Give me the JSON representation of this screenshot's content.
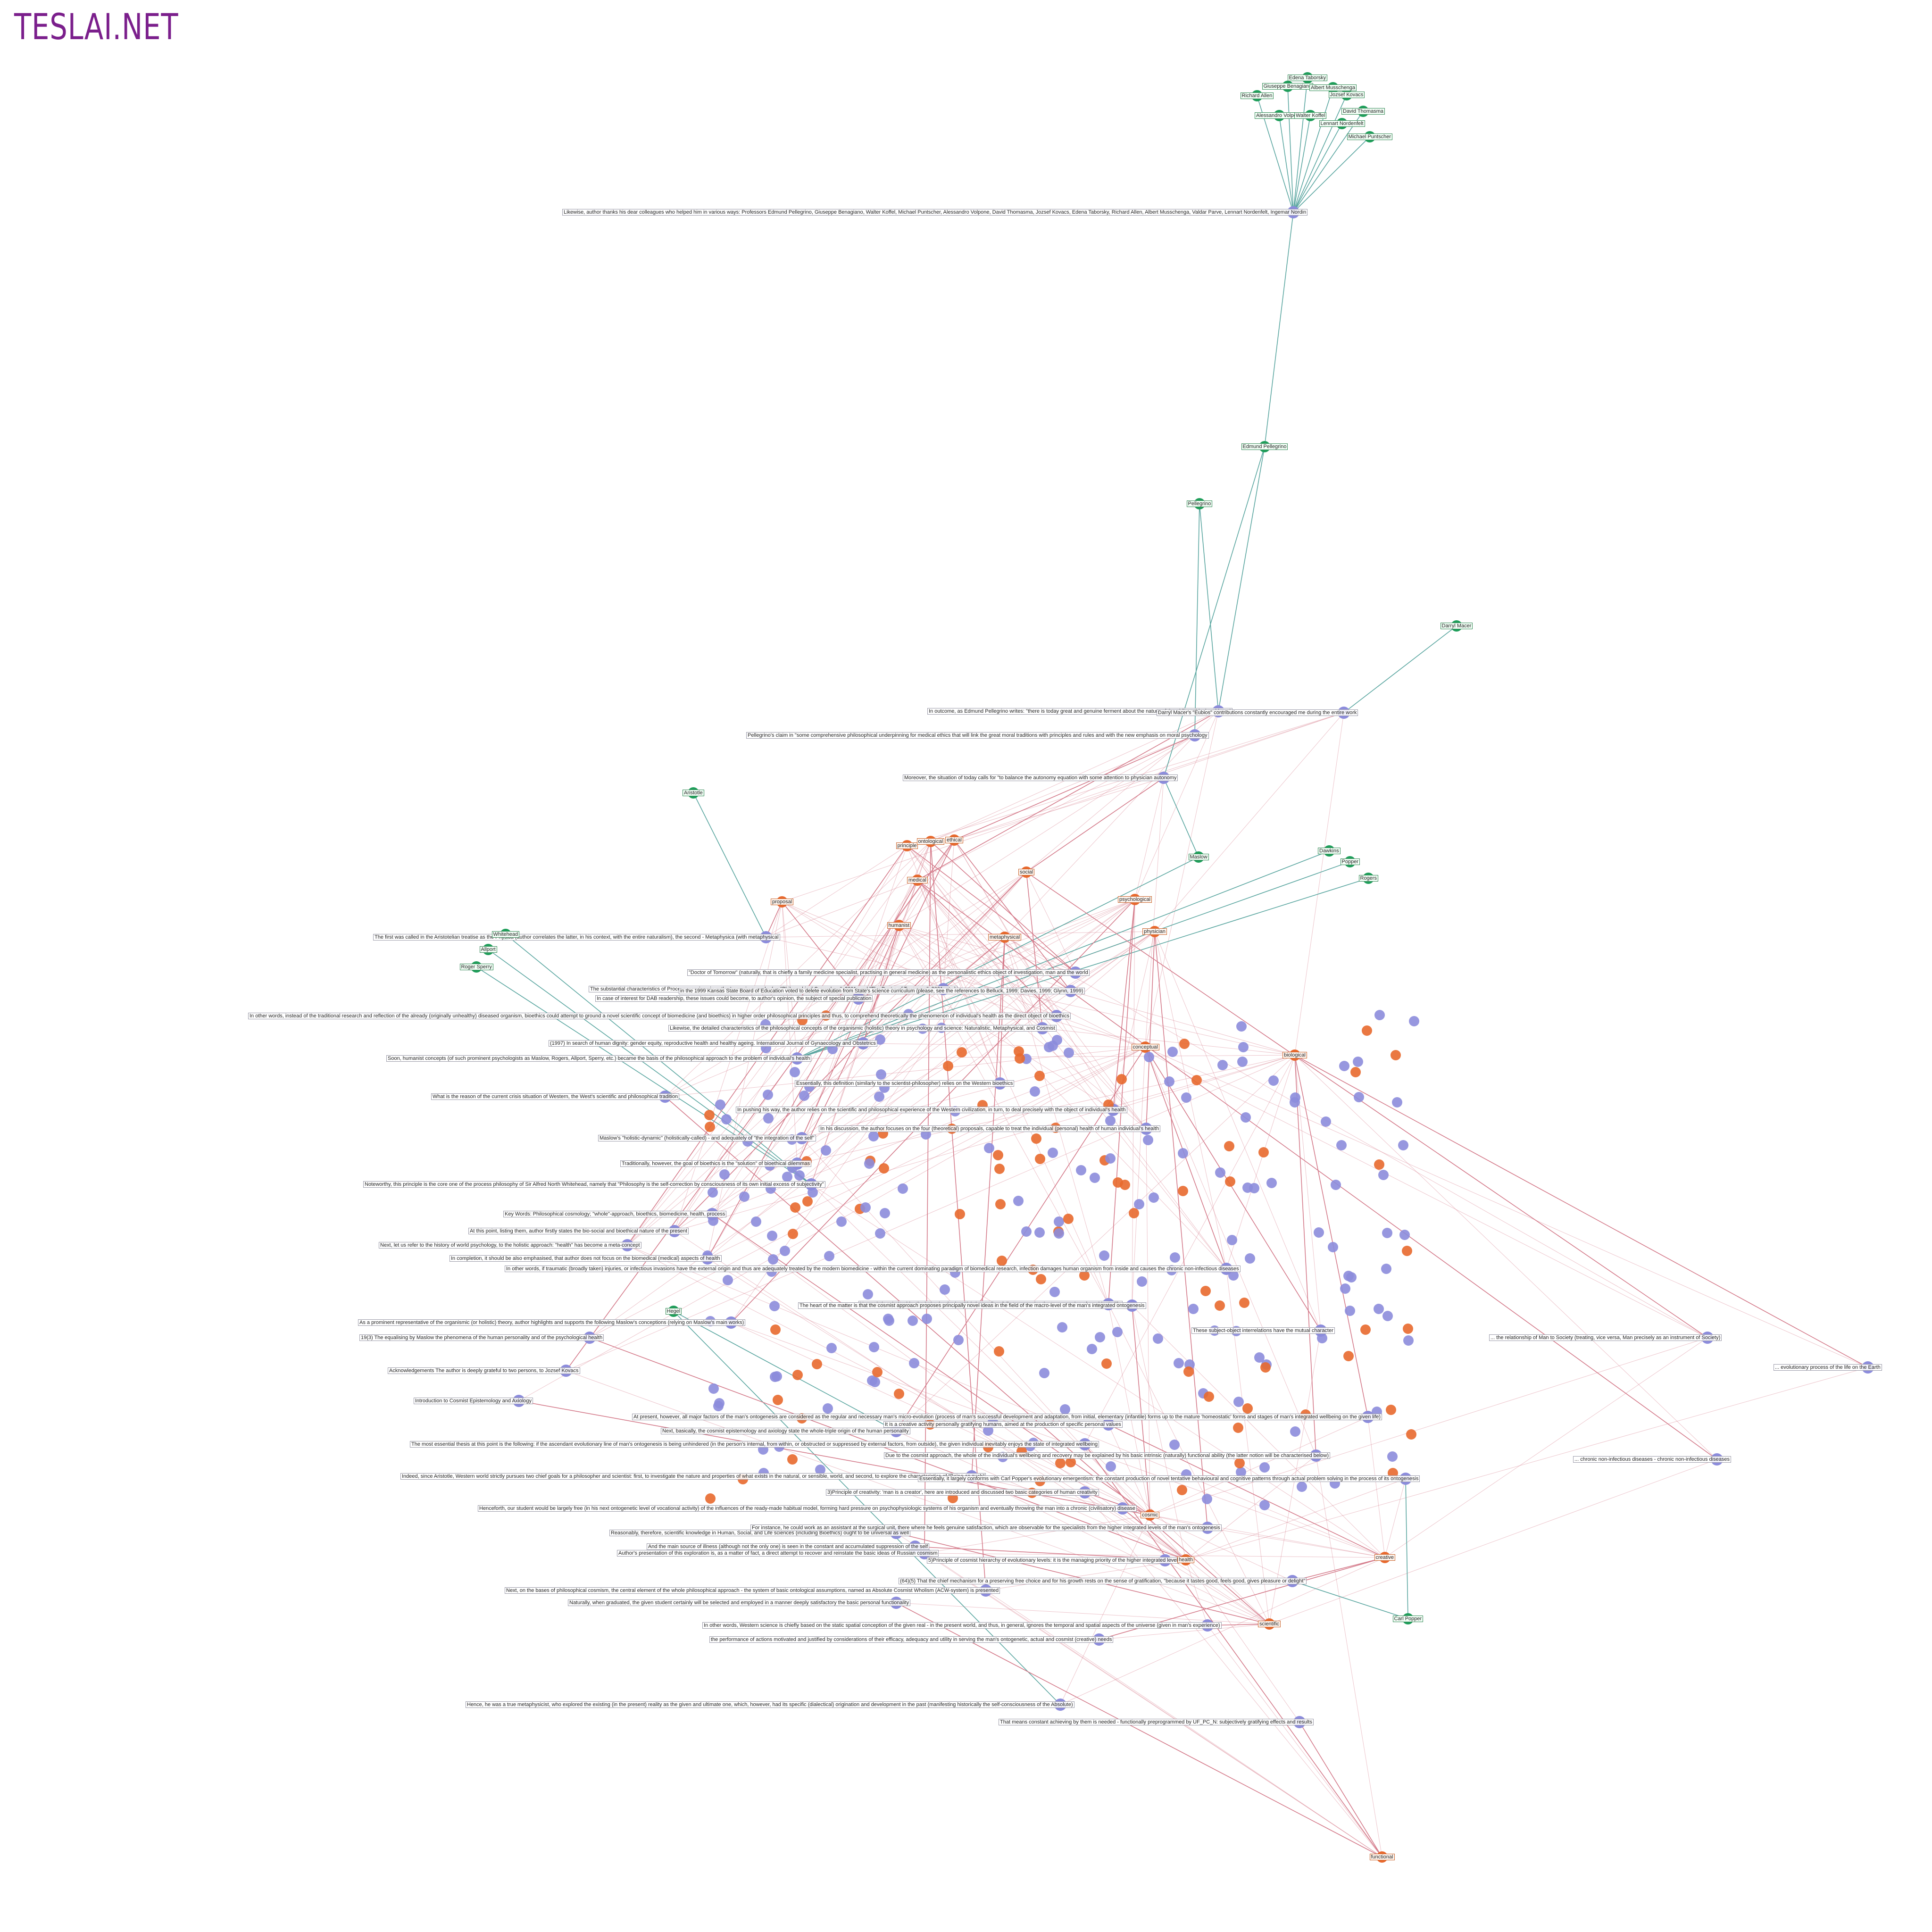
{
  "header": {
    "brand": "TESLAI.NET"
  },
  "colors": {
    "sentence_node": "#8c8cdc",
    "person_node": "#1f9e5a",
    "concept_node": "#e8692e",
    "edge_person": "#5aa6a0",
    "edge_concept": "#d47a8a",
    "brand": "#7b1f8c"
  },
  "people": [
    {
      "id": "p_taborsky",
      "label": "Edena Taborsky"
    },
    {
      "id": "p_benagiano",
      "label": "Giuseppe Benagiano"
    },
    {
      "id": "p_musschenga",
      "label": "Albert Musschenga"
    },
    {
      "id": "p_allen",
      "label": "Richard Allen"
    },
    {
      "id": "p_kovacs",
      "label": "Jozsef Kovacs"
    },
    {
      "id": "p_volpone",
      "label": "Alessandro Volpone"
    },
    {
      "id": "p_koffel",
      "label": "Walter Koffel"
    },
    {
      "id": "p_thomasma",
      "label": "David Thomasma"
    },
    {
      "id": "p_nordenfelt",
      "label": "Lennart Nordenfelt"
    },
    {
      "id": "p_puntscher",
      "label": "Michael Puntscher"
    },
    {
      "id": "p_edmund",
      "label": "Edmund Pellegrino"
    },
    {
      "id": "p_pellegrino",
      "label": "Pellegrino"
    },
    {
      "id": "p_macer",
      "label": "Darryl Macer"
    },
    {
      "id": "p_aristotle",
      "label": "Aristotle"
    },
    {
      "id": "p_maslow",
      "label": "Maslow"
    },
    {
      "id": "p_dawkins",
      "label": "Dawkins"
    },
    {
      "id": "p_popper",
      "label": "Popper"
    },
    {
      "id": "p_rogers",
      "label": "Rogers"
    },
    {
      "id": "p_whitehead",
      "label": "Whitehead"
    },
    {
      "id": "p_allport",
      "label": "Allport"
    },
    {
      "id": "p_roger_sperry",
      "label": "Roger Sperry"
    },
    {
      "id": "p_hegel",
      "label": "Hegel"
    },
    {
      "id": "p_carl",
      "label": "Carl Popper"
    }
  ],
  "concepts": [
    {
      "id": "c_principle",
      "label": "principle"
    },
    {
      "id": "c_ontological",
      "label": "ontological"
    },
    {
      "id": "c_ethical",
      "label": "ethical"
    },
    {
      "id": "c_medical",
      "label": "medical"
    },
    {
      "id": "c_social",
      "label": "social"
    },
    {
      "id": "c_proposal",
      "label": "proposal"
    },
    {
      "id": "c_humanist",
      "label": "humanist"
    },
    {
      "id": "c_psychological",
      "label": "psychological"
    },
    {
      "id": "c_physician",
      "label": "physician"
    },
    {
      "id": "c_metaphysical",
      "label": "metaphysical"
    },
    {
      "id": "c_conceptual",
      "label": "conceptual"
    },
    {
      "id": "c_biological",
      "label": "biological"
    },
    {
      "id": "c_cosmic",
      "label": "cosmic"
    },
    {
      "id": "c_health",
      "label": "health"
    },
    {
      "id": "c_scientific",
      "label": "scientific"
    },
    {
      "id": "c_creative",
      "label": "creative"
    },
    {
      "id": "c_functional",
      "label": "functional"
    }
  ],
  "sentences": [
    {
      "id": "s_thanks",
      "label": "Likewise, author thanks his dear colleagues who helped him in various ways: Professors Edmund Pellegrino, Giuseppe Benagiano, Walter Koffel, Michael Puntscher, Alessandro Volpone, David Thomasma, Jozsef Kovacs, Edena Taborsky, Richard Allen, Albert Musschenga, Valdar Parve, Lennart Nordenfelt, Ingemar Nordin"
    },
    {
      "id": "s_outcome",
      "label": "In outcome, as Edmund Pellegrino writes: \"there is today great and genuine ferment about the nature of the philosophical problems\""
    },
    {
      "id": "s_macer",
      "label": "Darryl Macer's \"Eubios\" contributions constantly encouraged me during the entire work"
    },
    {
      "id": "s_claim",
      "label": "Pellegrino's claim in \"some comprehensive philosophical underpinning for medical ethics that will link the great moral traditions with principles and rules and with the new emphasis on moral psychology"
    },
    {
      "id": "s_moreover",
      "label": "Moreover, the situation of today calls for \"to balance the autonomy equation with some attention to physician autonomy"
    },
    {
      "id": "s_first",
      "label": "The first was called in the Aristotelian treatise as the Physica (author correlates the latter, in his context, with the entire naturalism), the second - Metaphysica (with metaphysical"
    },
    {
      "id": "s_doctor",
      "label": "\"Doctor of Tomorrow\" (naturally, that is chiefly a family medicine specialist, practising in general medicine) as the personalistic ethics object of investigation, man and the world"
    },
    {
      "id": "s_substantial",
      "label": "The substantial characteristics of Process are given in author's previous works (on \"Philosophical Cosmology\", 2001, and \"The Doctor of Tomorrow\", 2001, etc.)"
    },
    {
      "id": "s_kansas",
      "label": "in the 1999 Kansas State Board of Education voted to delete evolution from State's science curriculum (please, see the references to Belluck, 1999; Davies, 1999; Glynn, 1999)"
    },
    {
      "id": "s_interest",
      "label": "In case of interest for DAB readership, these issues could become, to author's opinion, the subject of special publication"
    },
    {
      "id": "s_otherwords",
      "label": "In other words, instead of the traditional research and reflection of the already (originally unhealthy) diseased organism, bioethics could attempt to ground a novel scientific concept of biomedicine (and bioethics) in higher order philosophical principles and thus, to comprehend theoretically the phenomenon of individual's health as the direct object of bioethics"
    },
    {
      "id": "s_likewise2",
      "label": "Likewise, the detailed characteristics of the philosophical concepts of the organismic (holistic) theory in psychology and science: Naturalistic, Metaphysical, and Cosmist"
    },
    {
      "id": "s_1997",
      "label": "(1997) In search of human dignity: gender equity, reproductive health and healthy ageing. International Journal of Gynaecology and Obstetrics"
    },
    {
      "id": "s_soon",
      "label": "Soon, humanist concepts (of such prominent psychologists as Maslow, Rogers, Allport, Sperry, etc.) became the basis of the philosophical approach to the problem of individual's health"
    },
    {
      "id": "s_essentially",
      "label": "Essentially, this definition (similarly to the scientist-philosopher) relies on the Western bioethics"
    },
    {
      "id": "s_what",
      "label": "What is the reason of the current crisis situation of Western, the West's scientific and philosophical tradition"
    },
    {
      "id": "s_pushing",
      "label": "In pushing his way, the author relies on the scientific and philosophical experience of the Western civilization, in turn, to deal precisely with the object of individual's health"
    },
    {
      "id": "s_discussion",
      "label": "In his discussion, the author focuses on the four (theoretical) proposals, capable to treat the individual (personal) health of human individual's health"
    },
    {
      "id": "s_maslow",
      "label": "Maslow's \"holistic-dynamic\" (holistically-called) - and adequately of \"the integration of the self\""
    },
    {
      "id": "s_traditionally",
      "label": "Traditionally, however, the goal of bioethics is the \"solution\" of bioethical dilemmas"
    },
    {
      "id": "s_noteworthy",
      "label": "Noteworthy, this principle is the core one of the process philosophy of Sir Alfred North Whitehead, namely that \"Philosophy is the self-correction by consciousness of its own initial excess of subjectivity\""
    },
    {
      "id": "s_keywords",
      "label": "Key Words: Philosophical cosmology; \"whole\"-approach, bioethics, biomedicine, health, process"
    },
    {
      "id": "s_atthis",
      "label": "At this point, listing them, author firstly states the bio-social and bioethical nature of the present"
    },
    {
      "id": "s_next",
      "label": "Next, let us refer to the history of world psychology, to the holistic approach: \"health\" has become a meta-concept"
    },
    {
      "id": "s_completion",
      "label": "In completion, it should be also emphasised, that author does not focus on the biomedical (medical) aspects of health"
    },
    {
      "id": "s_traumatic",
      "label": "In other words, if traumatic (broadly taken) injuries, or infectious invasions have the external origin and thus are adequately treated by the modern biomedicine - within the current dominating paradigm of biomedical research, infection damages human organism from inside and causes the chronic non-infectious diseases"
    },
    {
      "id": "s_prominent",
      "label": "As a prominent representative of the organismic (or holistic) theory, author highlights and supports the following Maslow's conceptions (relying on Maslow's main works)"
    },
    {
      "id": "s_equalising",
      "label": "19(3) The equalising by Maslow the phenomena of the human personality and of the psychological health"
    },
    {
      "id": "s_ack",
      "label": "Acknowledgements The author is deeply grateful to two persons, to Jozsef Kovacs"
    },
    {
      "id": "s_intro",
      "label": "Introduction to Cosmist Epistemology and Axiology"
    },
    {
      "id": "s_basically",
      "label": "Next, basically, the cosmist epistemology and axiology state the whole-triple origin of the human personality"
    },
    {
      "id": "s_indeed",
      "label": "Indeed, since Aristotle, Western world strictly pursues two chief goals for a philosopher and scientist: first, to investigate the nature and properties of what exists in the natural, or sensible, world, and second, to explore the characteristics of \"Being as such\""
    },
    {
      "id": "s_popper",
      "label": "Essentially, it largely conforms with Carl Popper's evolutionary emergentism: the constant production of novel tentative behavioural and cognitive patterns through actual problem solving in the process of its ontogenesis"
    },
    {
      "id": "s_reasonably",
      "label": "Reasonably, therefore, scientific knowledge in Human, Social, and Life sciences (including Bioethics) ought to be universal as well"
    },
    {
      "id": "s_presentation",
      "label": "Author's presentation of this exploration is, as a matter of fact, a direct attempt to recover and reinstate the basic ideas of Russian cosmism"
    },
    {
      "id": "s_nextbases",
      "label": "Next, on the bases of philosophical cosmism, the central element of the whole philosophical approach - the system of basic ontological assumptions, named as Absolute Cosmist Wholism (ACW-system) is presented"
    },
    {
      "id": "s_naturally",
      "label": "Naturally, when graduated, the given student certainly will be selected and employed in a manner deeply satisfactory the basic personal functionality"
    },
    {
      "id": "s_creative",
      "label": "It is a creative activity personally gratifying humans, aimed at the production of specific personal values"
    },
    {
      "id": "s_principle3",
      "label": "3)Principle of creativity: 'man is a creator', here are introduced and discussed two basic categories of human creativity"
    },
    {
      "id": "s_henceforth",
      "label": "Henceforth, our student would be largely free (in his next ontogenetic level of vocational activity) of the influences of the ready-made habitual model, forming hard pressure on psychophysiologic systems of his organism and eventually throwing the man into a chronic (civilisatory) disease"
    },
    {
      "id": "s_instance",
      "label": "For instance, he could work as an assistant at the surgical unit, there where he feels genuine satisfaction, which are observable for the specialists from the higher integrated levels of the man's ontogenesis"
    },
    {
      "id": "s_mainsource",
      "label": "And the main source of illness (although not the only one) is seen in the constant and accumulated suppression of the self"
    },
    {
      "id": "s_principle5",
      "label": "5)Principle of cosmist hierarchy of evolutionary levels: it is the managing priority of the higher integrated level"
    },
    {
      "id": "s_chief",
      "label": "(64)(5) That the chief mechanism for a preserving free choice and for his growth rests on the sense of gratification, \"because it tastes good, feels good, gives pleasure or delight\""
    },
    {
      "id": "s_westernsci",
      "label": "In other words, Western science is chiefly based on the static spatial conception of the given real - in the present world, and thus, in general, ignores the temporal and spatial aspects of the universe (given in man's experience)"
    },
    {
      "id": "s_performance",
      "label": "the performance of actions motivated and justified by considerations of their efficacy, adequacy and utility in serving the man's ontogenetic, actual and cosmist (creative) needs"
    },
    {
      "id": "s_metaphysicist",
      "label": "Hence, he was a true metaphysicist, who explored the existing (in the present) reality as the given and ultimate one, which, however, had its specific (dialectical) origination and development in the past (manifesting historically the self-consciousness of the Absolute)"
    },
    {
      "id": "s_constant",
      "label": "That means constant achieving by them is needed - functionally preprogrammed by UF_PC_N: subjectively gratifying effects and results"
    },
    {
      "id": "s_humanistic",
      "label": "Humanistic scholarship: the behaviourist (positivist) paradigm fails to recognize the true meaning of a subject's life"
    },
    {
      "id": "s_heart",
      "label": "The heart of the matter is that the cosmist approach proposes principally novel ideas in the field of the macro-level of the man's integrated ontogenesis"
    },
    {
      "id": "s_essential",
      "label": "The most essential thesis at this point is the following: if the ascendant evolutionary line of man's ontogenesis is being unhindered (in the person's internal, from within, or obstructed or suppressed by external factors, from outside), the given individual inevitably enjoys the state of integrated wellbeing"
    },
    {
      "id": "s_present",
      "label": "At present, however, all major factors of the man's ontogenesis are considered as the regular and necessary man's micro-evolution (process of man's successful development and adaptation, from initial, elementary (infantile) forms up to the mature 'homeostatic' forms and stages of man's integrated wellbeing on the given life)"
    },
    {
      "id": "s_recovery",
      "label": "Due to the cosmist approach, the whole of the individual's wellbeing and recovery may be explained by his basic intrinsic (naturally) functional ability (the latter notion will be characterised below)"
    },
    {
      "id": "s_subject",
      "label": "These subject-object interrelations have the mutual character"
    },
    {
      "id": "s_man_society",
      "label": "... the relationship of Man to Society (treating, vice versa, Man precisely as an instrument of Society)"
    },
    {
      "id": "s_earth",
      "label": "... evolutionary process of the life on the Earth"
    },
    {
      "id": "s_chronic",
      "label": "... chronic non-infectious diseases - chronic non-infectious diseases"
    }
  ],
  "footer_note": ""
}
